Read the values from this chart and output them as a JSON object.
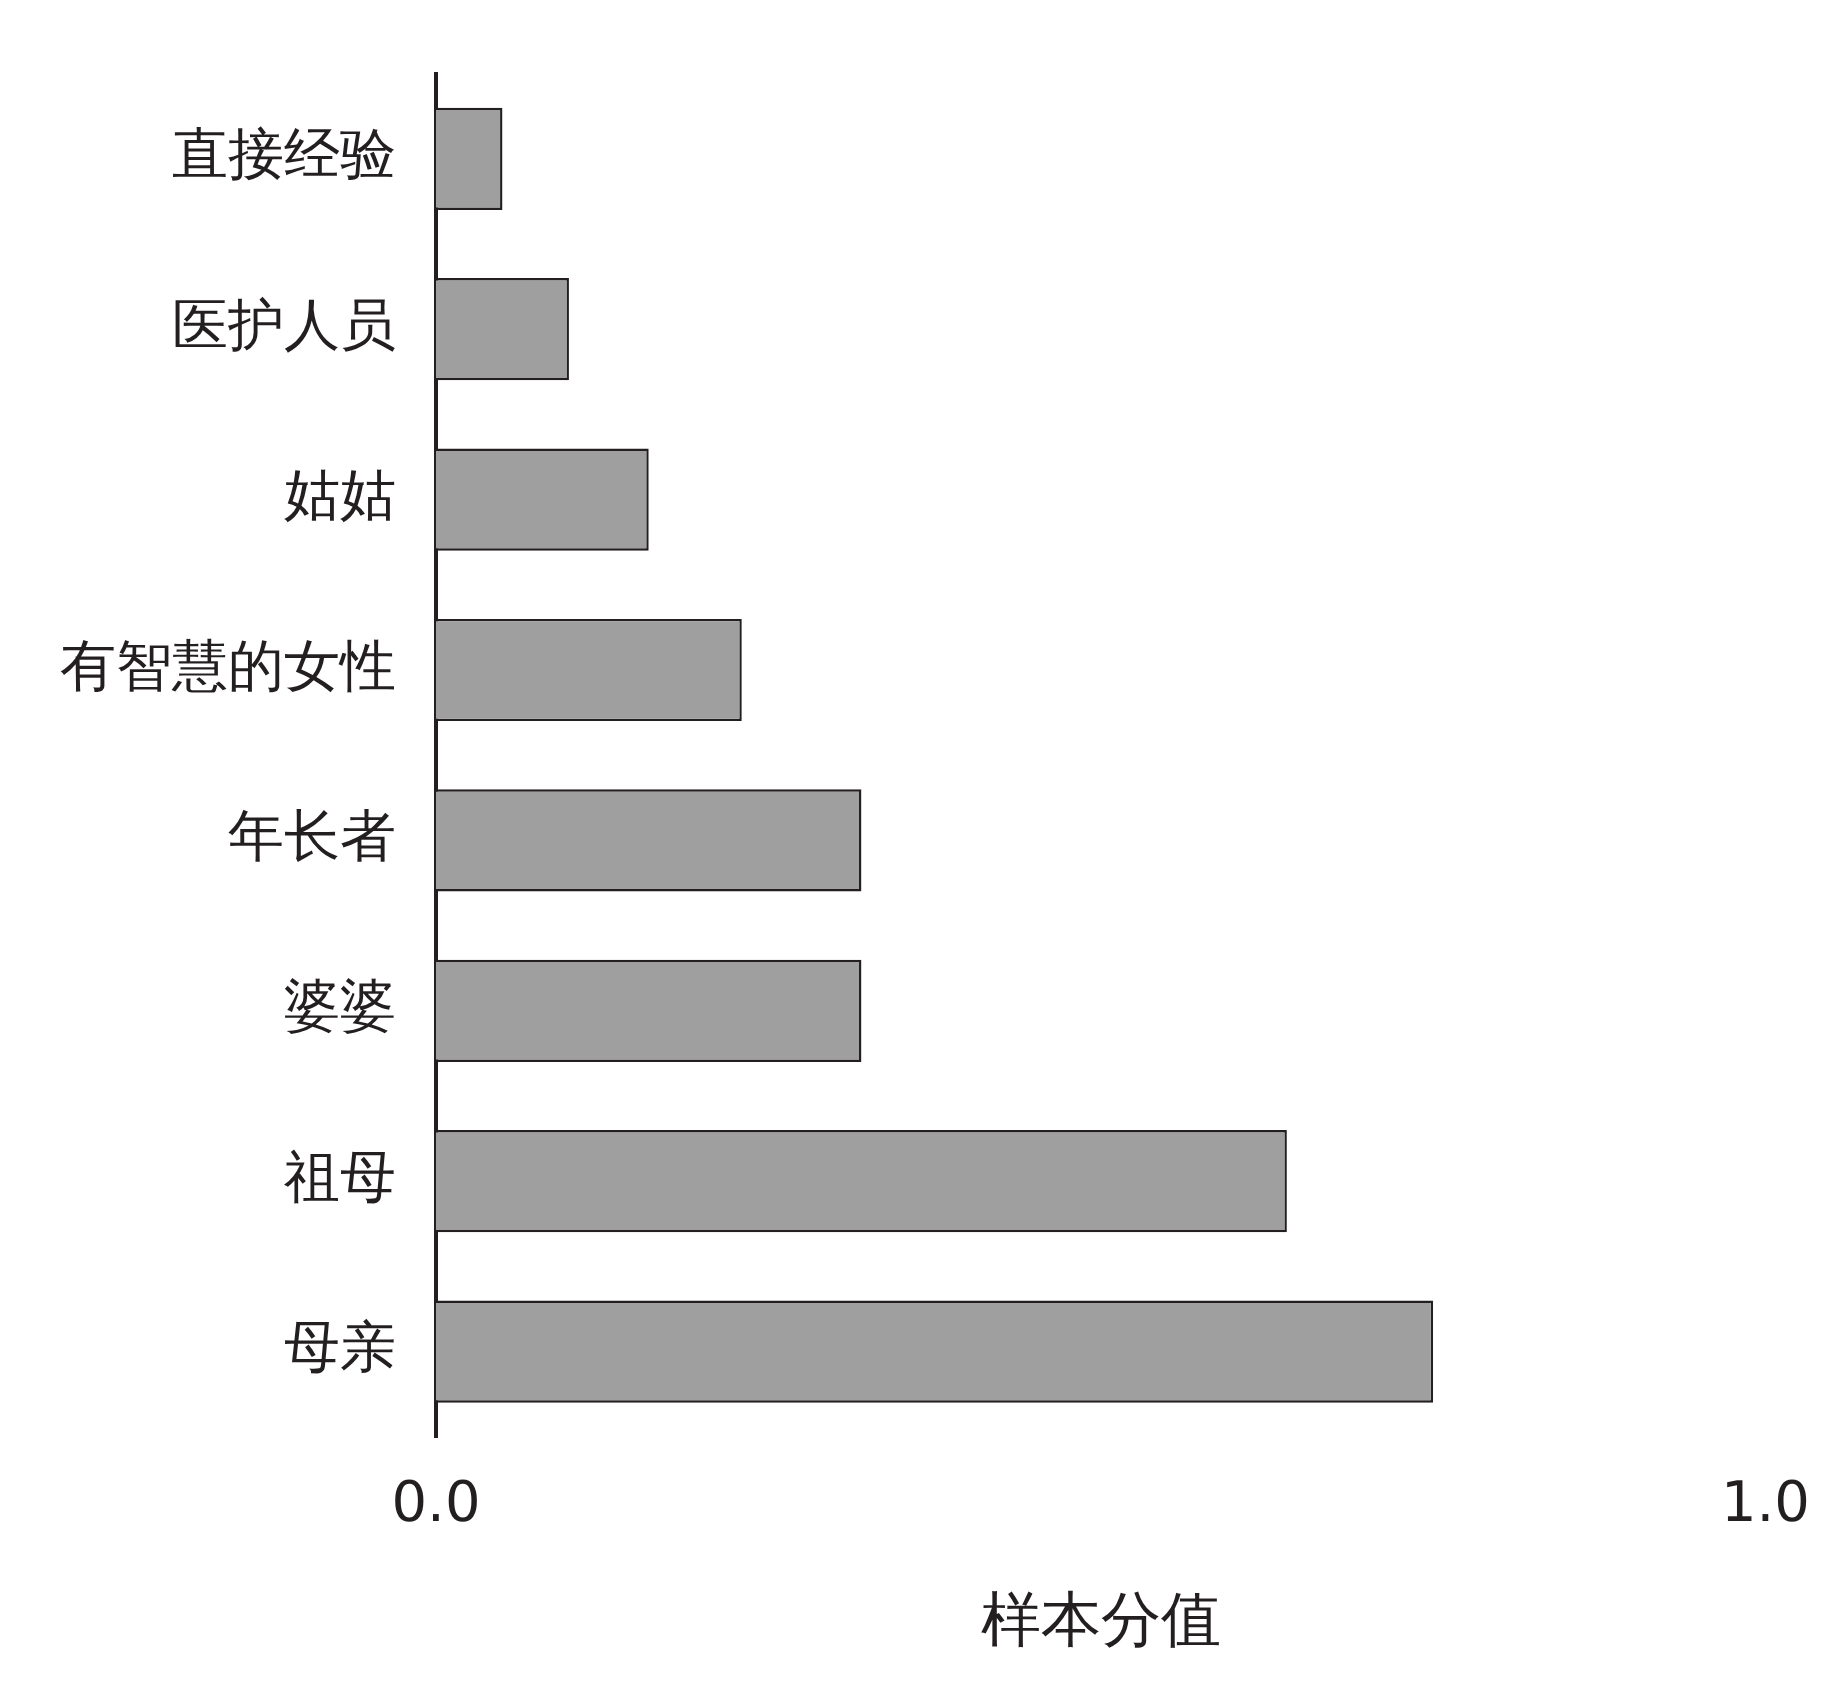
{
  "chart_data": {
    "type": "bar",
    "orientation": "horizontal",
    "xlabel": "样本分值",
    "categories": [
      "直接经验",
      "医护人员",
      "姑姑",
      "有智慧的女性",
      "年长者",
      "婆婆",
      "祖母",
      "母亲"
    ],
    "values": [
      0.05,
      0.1,
      0.16,
      0.23,
      0.32,
      0.32,
      0.64,
      0.75
    ],
    "color": "#a09fa0",
    "xlim": [
      0,
      1
    ],
    "xticks": [
      {
        "value": 0,
        "label": "0.0"
      },
      {
        "value": 1,
        "label": "1.0"
      }
    ],
    "grid": false,
    "legend": false
  }
}
